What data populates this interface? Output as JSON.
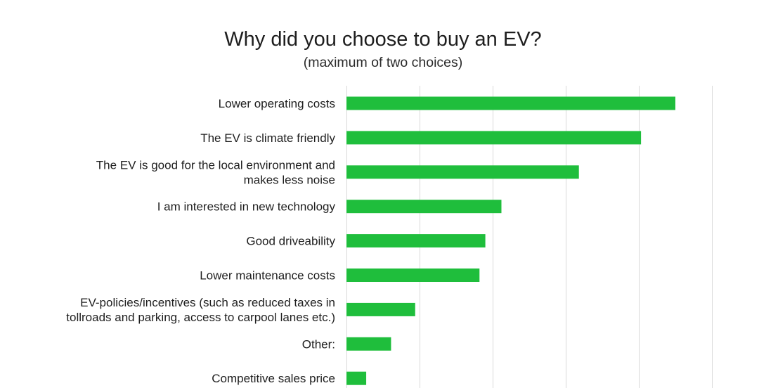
{
  "chart_data": {
    "type": "bar",
    "orientation": "horizontal",
    "title": "Why did you choose to buy an EV?",
    "subtitle": "(maximum of two choices)",
    "categories": [
      [
        "Lower operating costs"
      ],
      [
        "The EV is climate friendly"
      ],
      [
        "The EV is good for the local environment and",
        "makes less noise"
      ],
      [
        "I am interested in new technology"
      ],
      [
        "Good driveability"
      ],
      [
        "Lower maintenance costs"
      ],
      [
        "EV-policies/incentives (such as reduced taxes in",
        "tollroads and parking, access to carpool lanes etc.)"
      ],
      [
        "Other:"
      ],
      [
        "Competitive sales price"
      ]
    ],
    "values": [
      45.0,
      40.3,
      31.8,
      21.2,
      19.0,
      18.2,
      9.4,
      6.1,
      2.7
    ],
    "xlim": [
      0,
      50
    ],
    "grid": true,
    "bar_color": "#1fbe3c",
    "grid_color": "#d9d9d9"
  }
}
